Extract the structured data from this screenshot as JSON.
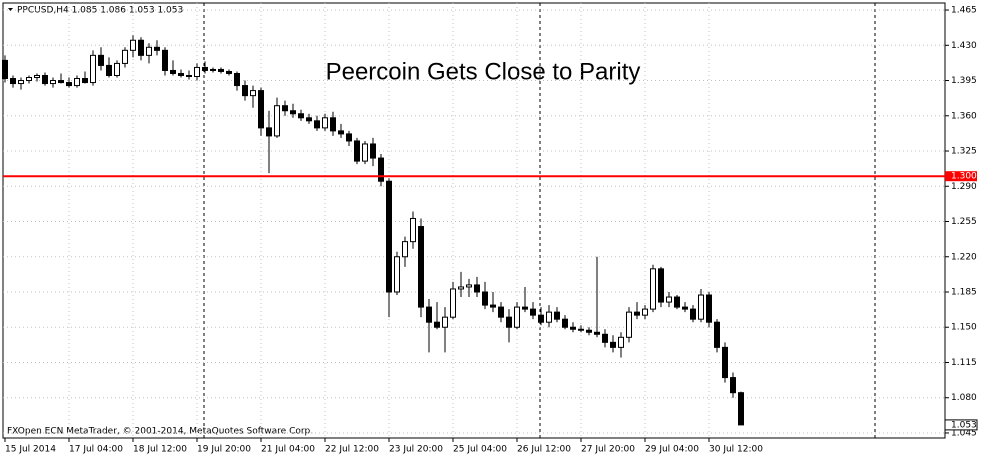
{
  "chart_data": {
    "type": "candlestick",
    "header": "PPCUSD,H4  1.085 1.086 1.053 1.053",
    "title": "Peercoin Gets Close to Parity",
    "footer": "FXOpen ECN MetaTrader, © 2001-2014, MetaQuotes Software Corp.",
    "categories": [
      "15 Jul 2014",
      null,
      null,
      null,
      null,
      null,
      null,
      null,
      "17 Jul 04:00",
      null,
      null,
      null,
      null,
      null,
      null,
      null,
      "18 Jul 12:00",
      null,
      null,
      null,
      null,
      null,
      null,
      null,
      "19 Jul 20:00",
      null,
      null,
      null,
      null,
      null,
      null,
      null,
      "21 Jul 04:00",
      null,
      null,
      null,
      null,
      null,
      null,
      null,
      "22 Jul 12:00",
      null,
      null,
      null,
      null,
      null,
      null,
      null,
      "23 Jul 20:00",
      null,
      null,
      null,
      null,
      null,
      null,
      null,
      "25 Jul 04:00",
      null,
      null,
      null,
      null,
      null,
      null,
      null,
      "26 Jul 12:00",
      null,
      null,
      null,
      null,
      null,
      null,
      null,
      "27 Jul 20:00",
      null,
      null,
      null,
      null,
      null,
      null,
      null,
      "29 Jul 04:00",
      null,
      null,
      null,
      null,
      null,
      null,
      null,
      "30 Jul 12:00",
      null,
      null,
      null,
      null
    ],
    "open": [
      1.415,
      1.397,
      1.392,
      1.395,
      1.398,
      1.4,
      1.392,
      1.395,
      1.393,
      1.39,
      1.397,
      1.393,
      1.42,
      1.41,
      1.4,
      1.412,
      1.425,
      1.435,
      1.42,
      1.428,
      1.425,
      1.405,
      1.402,
      1.4,
      1.399,
      1.408,
      1.405,
      1.406,
      1.404,
      1.402,
      1.39,
      1.38,
      1.385,
      1.348,
      1.34,
      1.37,
      1.365,
      1.362,
      1.358,
      1.355,
      1.348,
      1.358,
      1.345,
      1.342,
      1.335,
      1.315,
      1.332,
      1.318,
      1.295,
      1.185,
      1.22,
      1.235,
      1.25,
      1.17,
      1.155,
      1.15,
      1.16,
      1.188,
      1.19,
      1.192,
      1.185,
      1.172,
      1.17,
      1.16,
      1.15,
      1.17,
      1.168,
      1.162,
      1.155,
      1.165,
      1.158,
      1.15,
      1.148,
      1.147,
      1.145,
      1.143,
      1.135,
      1.13,
      1.14,
      1.165,
      1.162,
      1.168,
      1.208,
      1.175,
      1.18,
      1.17,
      1.168,
      1.158,
      1.182,
      1.155,
      1.13,
      1.1,
      1.085
    ],
    "high": [
      1.42,
      1.4,
      1.398,
      1.4,
      1.402,
      1.403,
      1.398,
      1.402,
      1.398,
      1.4,
      1.404,
      1.425,
      1.428,
      1.418,
      1.415,
      1.428,
      1.44,
      1.438,
      1.432,
      1.435,
      1.428,
      1.415,
      1.406,
      1.405,
      1.412,
      1.414,
      1.408,
      1.408,
      1.406,
      1.404,
      1.395,
      1.39,
      1.388,
      1.365,
      1.378,
      1.375,
      1.372,
      1.366,
      1.362,
      1.36,
      1.362,
      1.364,
      1.352,
      1.345,
      1.338,
      1.335,
      1.338,
      1.322,
      1.298,
      1.225,
      1.24,
      1.265,
      1.258,
      1.178,
      1.175,
      1.17,
      1.195,
      1.205,
      1.198,
      1.2,
      1.195,
      1.185,
      1.175,
      1.168,
      1.175,
      1.19,
      1.175,
      1.17,
      1.172,
      1.17,
      1.162,
      1.155,
      1.152,
      1.15,
      1.22,
      1.148,
      1.142,
      1.145,
      1.17,
      1.175,
      1.172,
      1.212,
      1.21,
      1.185,
      1.182,
      1.175,
      1.172,
      1.188,
      1.185,
      1.158,
      1.135,
      1.105,
      1.086
    ],
    "low": [
      1.393,
      1.388,
      1.386,
      1.392,
      1.394,
      1.39,
      1.388,
      1.392,
      1.388,
      1.388,
      1.392,
      1.39,
      1.405,
      1.398,
      1.398,
      1.408,
      1.418,
      1.415,
      1.412,
      1.42,
      1.4,
      1.4,
      1.398,
      1.396,
      1.395,
      1.402,
      1.403,
      1.402,
      1.4,
      1.385,
      1.375,
      1.368,
      1.34,
      1.303,
      1.338,
      1.36,
      1.358,
      1.355,
      1.352,
      1.345,
      1.345,
      1.34,
      1.338,
      1.33,
      1.312,
      1.312,
      1.31,
      1.29,
      1.16,
      1.182,
      1.21,
      1.228,
      1.16,
      1.125,
      1.148,
      1.125,
      1.158,
      1.18,
      1.18,
      1.18,
      1.168,
      1.165,
      1.155,
      1.135,
      1.148,
      1.165,
      1.158,
      1.152,
      1.15,
      1.155,
      1.148,
      1.145,
      1.145,
      1.142,
      1.14,
      1.13,
      1.125,
      1.12,
      1.135,
      1.158,
      1.158,
      1.165,
      1.17,
      1.17,
      1.168,
      1.165,
      1.155,
      1.155,
      1.15,
      1.125,
      1.095,
      1.08,
      1.053
    ],
    "close": [
      1.397,
      1.392,
      1.395,
      1.398,
      1.4,
      1.392,
      1.395,
      1.393,
      1.39,
      1.397,
      1.393,
      1.42,
      1.41,
      1.4,
      1.412,
      1.425,
      1.435,
      1.42,
      1.428,
      1.425,
      1.405,
      1.402,
      1.4,
      1.399,
      1.408,
      1.405,
      1.406,
      1.404,
      1.402,
      1.39,
      1.38,
      1.385,
      1.348,
      1.34,
      1.37,
      1.365,
      1.362,
      1.358,
      1.355,
      1.348,
      1.358,
      1.345,
      1.342,
      1.335,
      1.315,
      1.332,
      1.318,
      1.295,
      1.185,
      1.22,
      1.235,
      1.258,
      1.17,
      1.155,
      1.15,
      1.16,
      1.188,
      1.19,
      1.192,
      1.185,
      1.172,
      1.17,
      1.16,
      1.15,
      1.17,
      1.168,
      1.162,
      1.155,
      1.165,
      1.158,
      1.15,
      1.148,
      1.147,
      1.145,
      1.143,
      1.135,
      1.13,
      1.14,
      1.165,
      1.162,
      1.168,
      1.208,
      1.175,
      1.18,
      1.17,
      1.168,
      1.158,
      1.182,
      1.155,
      1.13,
      1.1,
      1.085,
      1.053
    ],
    "ylim": [
      1.04,
      1.472
    ],
    "yticks": [
      1.465,
      {
        "value": 1.43,
        "label": "1.430"
      },
      1.395,
      {
        "value": 1.36,
        "label": "1.360"
      },
      1.325,
      {
        "value": 1.29,
        "label": "1.290"
      },
      1.255,
      {
        "value": 1.22,
        "label": "1.220"
      },
      1.185,
      {
        "value": 1.15,
        "label": "1.150"
      },
      1.115,
      {
        "value": 1.08,
        "label": "1.080"
      },
      1.045
    ],
    "price_line": {
      "value": 1.3,
      "label": "1.300",
      "color": "#ff0000"
    },
    "current_price": 1.053,
    "grid": true
  }
}
